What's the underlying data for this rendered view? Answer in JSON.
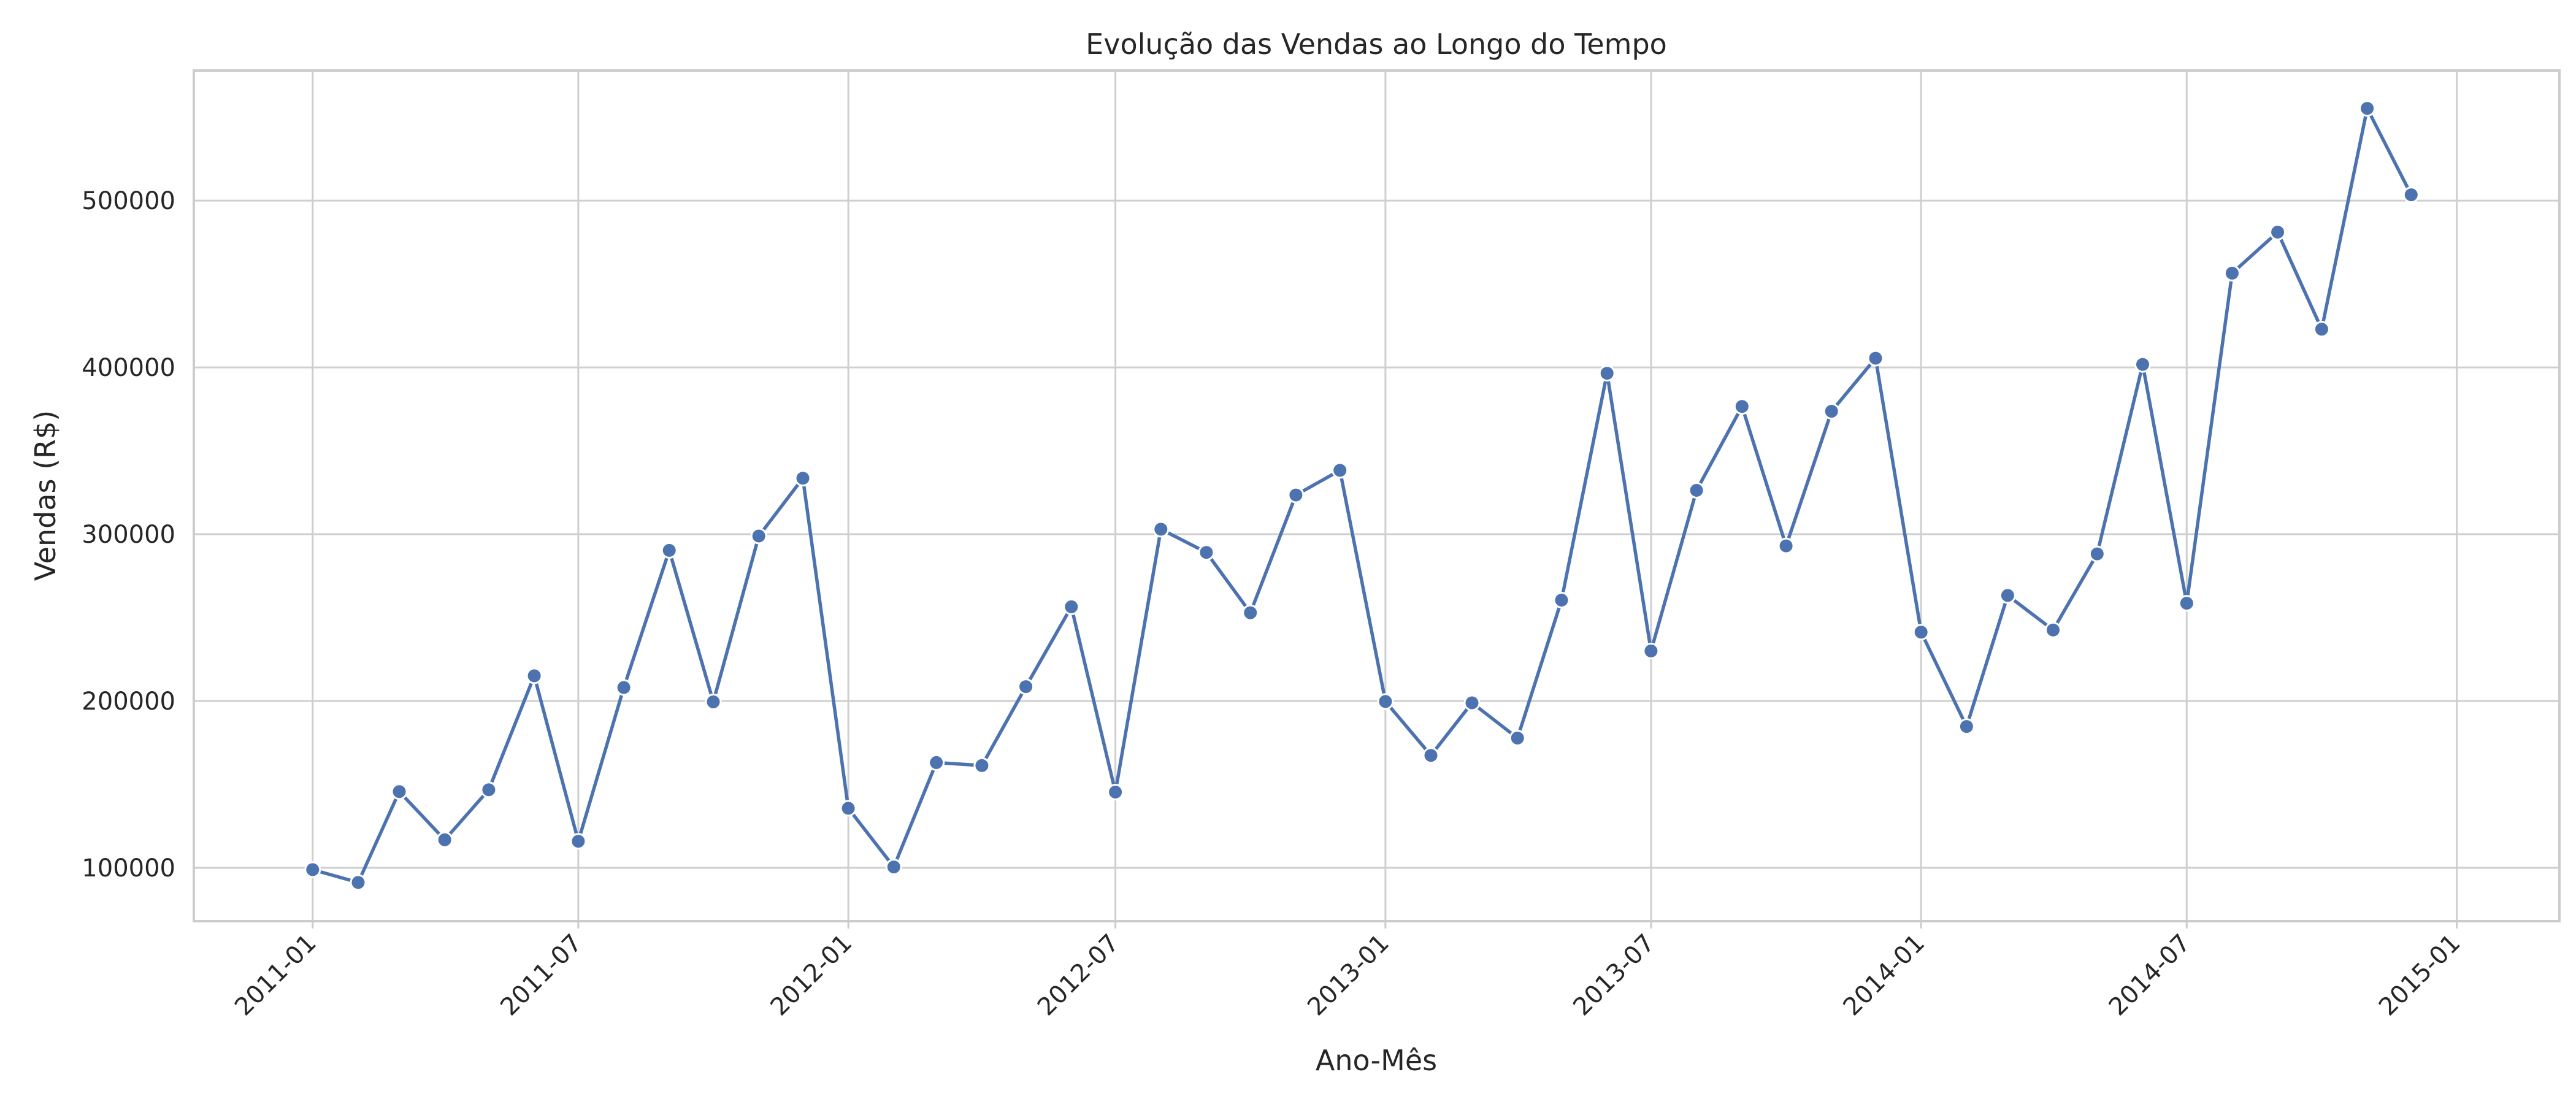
{
  "chart_data": {
    "type": "line",
    "title": "Evolução das Vendas ao Longo do Tempo",
    "xlabel": "Ano-Mês",
    "ylabel": "Vendas (R$)",
    "x": [
      "2011-01",
      "2011-02",
      "2011-03",
      "2011-04",
      "2011-05",
      "2011-06",
      "2011-07",
      "2011-08",
      "2011-09",
      "2011-10",
      "2011-11",
      "2011-12",
      "2012-01",
      "2012-02",
      "2012-03",
      "2012-04",
      "2012-05",
      "2012-06",
      "2012-07",
      "2012-08",
      "2012-09",
      "2012-10",
      "2012-11",
      "2012-12",
      "2013-01",
      "2013-02",
      "2013-03",
      "2013-04",
      "2013-05",
      "2013-06",
      "2013-07",
      "2013-08",
      "2013-09",
      "2013-10",
      "2013-11",
      "2013-12",
      "2014-01",
      "2014-02",
      "2014-03",
      "2014-04",
      "2014-05",
      "2014-06",
      "2014-07",
      "2014-08",
      "2014-09",
      "2014-10",
      "2014-11",
      "2014-12"
    ],
    "series": [
      {
        "values": [
          98900,
          91200,
          145700,
          116800,
          146800,
          215100,
          115900,
          208100,
          290300,
          199500,
          298900,
          333600,
          135700,
          100500,
          163100,
          161300,
          208600,
          256500,
          145400,
          303000,
          289100,
          252900,
          323500,
          338300,
          199700,
          167400,
          198900,
          177800,
          260500,
          396500,
          230000,
          326300,
          376600,
          293000,
          373700,
          405500,
          241300,
          184700,
          263300,
          242600,
          288200,
          401800,
          258600,
          456500,
          481100,
          422900,
          555300,
          503500
        ],
        "color": "#4c72b0"
      }
    ],
    "xticks": [
      "2011-01",
      "2011-07",
      "2012-01",
      "2012-07",
      "2013-01",
      "2013-07",
      "2014-01",
      "2014-07",
      "2015-01"
    ],
    "yticks": [
      100000,
      200000,
      300000,
      400000,
      500000
    ],
    "xlim": [
      "2010-10-12",
      "2015-03-12"
    ],
    "ylim": [
      68000,
      578000
    ],
    "grid": true,
    "legend": "none"
  }
}
